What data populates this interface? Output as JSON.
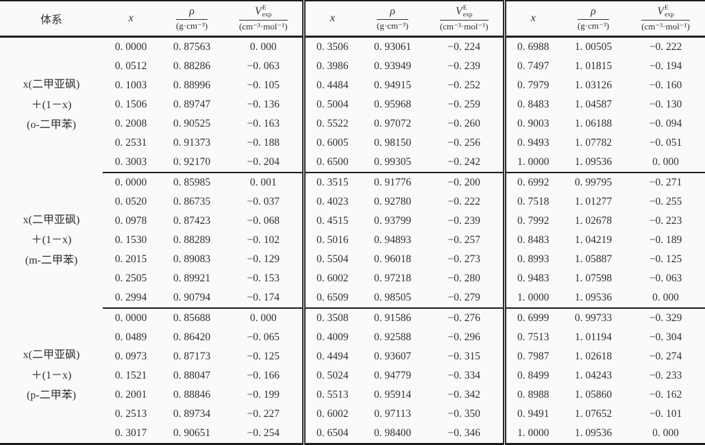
{
  "table": {
    "header": {
      "system_label": "体系",
      "x_label": "x",
      "rho_symbol": "ρ",
      "rho_unit": "(g·cm⁻³)",
      "v_symbol": "V",
      "v_sup": "E",
      "v_sub": "exp",
      "v_unit": "(cm⁻³·mol⁻¹)"
    },
    "groups": [
      {
        "system_lines": [
          "x(二甲亚砜)",
          "＋(1－x)",
          "(o-二甲苯)"
        ],
        "rows": [
          [
            "0. 0000",
            "0. 87563",
            "0. 000",
            "0. 3506",
            "0. 93061",
            "−0. 224",
            "0. 6988",
            "1. 00505",
            "−0. 222"
          ],
          [
            "0. 0512",
            "0. 88286",
            "−0. 063",
            "0. 3986",
            "0. 93949",
            "−0. 239",
            "0. 7497",
            "1. 01815",
            "−0. 194"
          ],
          [
            "0. 1003",
            "0. 88996",
            "−0. 105",
            "0. 4484",
            "0. 94915",
            "−0. 252",
            "0. 7979",
            "1. 03126",
            "−0. 160"
          ],
          [
            "0. 1506",
            "0. 89747",
            "−0. 136",
            "0. 5004",
            "0. 95968",
            "−0. 259",
            "0. 8483",
            "1. 04587",
            "−0. 130"
          ],
          [
            "0. 2008",
            "0. 90525",
            "−0. 163",
            "0. 5522",
            "0. 97072",
            "−0. 260",
            "0. 9003",
            "1. 06188",
            "−0. 094"
          ],
          [
            "0. 2531",
            "0. 91373",
            "−0. 188",
            "0. 6005",
            "0. 98150",
            "−0. 256",
            "0. 9493",
            "1. 07782",
            "−0. 051"
          ],
          [
            "0. 3003",
            "0. 92170",
            "−0. 204",
            "0. 6500",
            "0. 99305",
            "−0. 242",
            "1. 0000",
            "1. 09536",
            "0. 000"
          ]
        ]
      },
      {
        "system_lines": [
          "x(二甲亚砜)",
          "＋(1－x)",
          "(m-二甲苯)"
        ],
        "rows": [
          [
            "0. 0000",
            "0. 85985",
            "0. 001",
            "0. 3515",
            "0. 91776",
            "−0. 200",
            "0. 6992",
            "0. 99795",
            "−0. 271"
          ],
          [
            "0. 0520",
            "0. 86735",
            "−0. 037",
            "0. 4023",
            "0. 92780",
            "−0. 222",
            "0. 7518",
            "1. 01277",
            "−0. 255"
          ],
          [
            "0. 0978",
            "0. 87423",
            "−0. 068",
            "0. 4515",
            "0. 93799",
            "−0. 239",
            "0. 7992",
            "1. 02678",
            "−0. 223"
          ],
          [
            "0. 1530",
            "0. 88289",
            "−0. 102",
            "0. 5016",
            "0. 94893",
            "−0. 257",
            "0. 8483",
            "1. 04219",
            "−0. 189"
          ],
          [
            "0. 2015",
            "0. 89083",
            "−0. 129",
            "0. 5504",
            "0. 96018",
            "−0. 273",
            "0. 8993",
            "1. 05887",
            "−0. 125"
          ],
          [
            "0. 2505",
            "0. 89921",
            "−0. 153",
            "0. 6002",
            "0. 97218",
            "−0. 280",
            "0. 9483",
            "1. 07598",
            "−0. 063"
          ],
          [
            "0. 2994",
            "0. 90794",
            "−0. 174",
            "0. 6509",
            "0. 98505",
            "−0. 279",
            "1. 0000",
            "1. 09536",
            "0. 000"
          ]
        ]
      },
      {
        "system_lines": [
          "x(二甲亚砜)",
          "＋(1－x)",
          "(p-二甲苯)"
        ],
        "rows": [
          [
            "0. 0000",
            "0. 85688",
            "0. 000",
            "0. 3508",
            "0. 91586",
            "−0. 276",
            "0. 6999",
            "0. 99733",
            "−0. 329"
          ],
          [
            "0. 0489",
            "0. 86420",
            "−0. 065",
            "0. 4009",
            "0. 92588",
            "−0. 296",
            "0. 7513",
            "1. 01194",
            "−0. 304"
          ],
          [
            "0. 0973",
            "0. 87173",
            "−0. 125",
            "0. 4494",
            "0. 93607",
            "−0. 315",
            "0. 7987",
            "1. 02618",
            "−0. 274"
          ],
          [
            "0. 1521",
            "0. 88047",
            "−0. 166",
            "0. 5024",
            "0. 94779",
            "−0. 334",
            "0. 8499",
            "1. 04243",
            "−0. 233"
          ],
          [
            "0. 2001",
            "0. 88846",
            "−0. 199",
            "0. 5513",
            "0. 95914",
            "−0. 342",
            "0. 8988",
            "1. 05860",
            "−0. 162"
          ],
          [
            "0. 2513",
            "0. 89734",
            "−0. 227",
            "0. 6002",
            "0. 97113",
            "−0. 350",
            "0. 9491",
            "1. 07652",
            "−0. 101"
          ],
          [
            "0. 3017",
            "0. 90651",
            "−0. 254",
            "0. 6504",
            "0. 98400",
            "−0. 346",
            "1. 0000",
            "1. 09536",
            "0. 000"
          ]
        ]
      }
    ]
  }
}
